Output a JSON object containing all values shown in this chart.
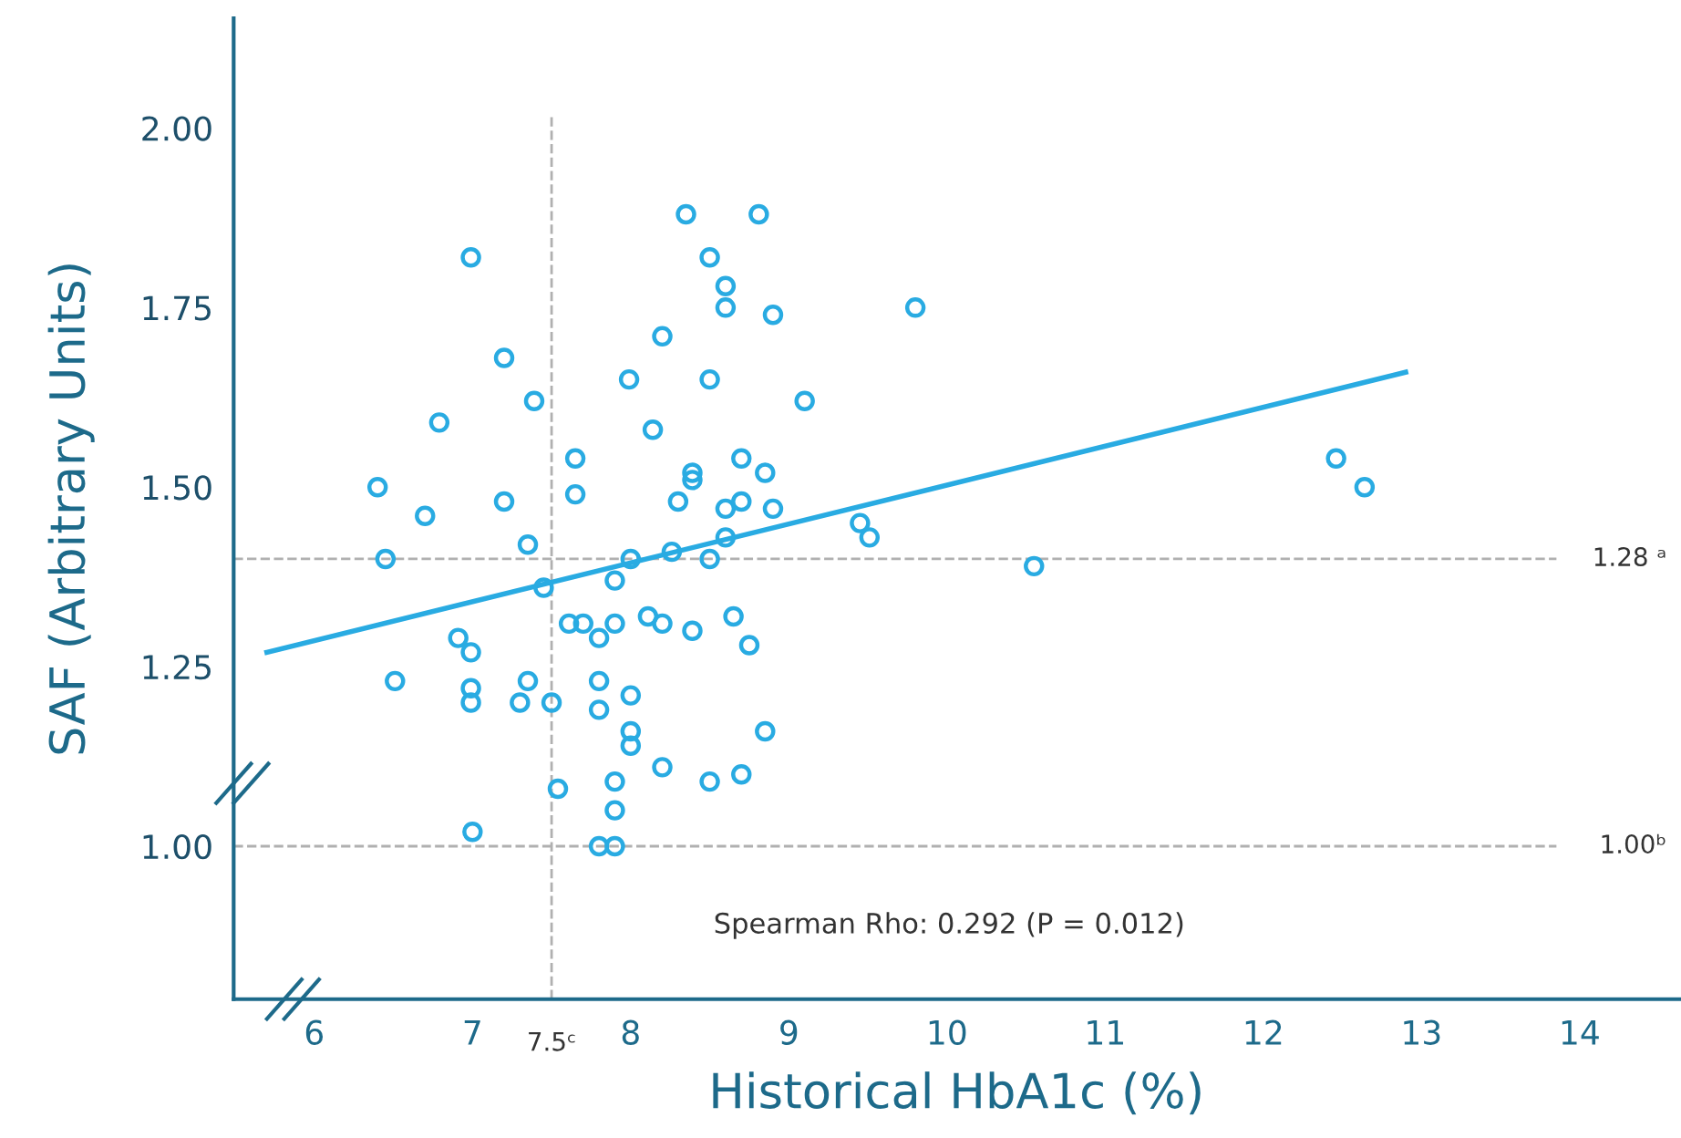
{
  "chart_data": {
    "type": "scatter",
    "xlabel": "Historical HbA1c (%)",
    "ylabel": "SAF (Arbitrary Units)",
    "xlim": [
      5.49,
      14.63
    ],
    "ylim": [
      0.787,
      2.153
    ],
    "xticks": [
      6,
      7,
      8,
      9,
      10,
      11,
      12,
      13,
      14
    ],
    "yticks": [
      {
        "value": 1,
        "label": "1.00"
      },
      {
        "value": 1.25,
        "label": "1.25"
      },
      {
        "value": 1.5,
        "label": "1.50"
      },
      {
        "value": 1.75,
        "label": "1.75"
      },
      {
        "value": 2,
        "label": "2.00"
      }
    ],
    "grid": false,
    "marker": "circle",
    "series": [
      {
        "color": "#29abe2",
        "x": [
          6.4,
          6.45,
          6.7,
          6.51,
          6.79,
          6.91,
          6.99,
          6.99,
          6.99,
          6.99,
          7.0,
          7.2,
          7.2,
          7.35,
          7.35,
          7.3,
          7.39,
          7.45,
          7.5,
          7.54,
          7.65,
          7.65,
          7.61,
          7.7,
          7.8,
          7.8,
          7.8,
          7.8,
          7.9,
          7.9,
          7.9,
          7.9,
          7.9,
          8.0,
          8.0,
          8.0,
          8.0,
          7.99,
          8.14,
          8.11,
          8.2,
          8.2,
          8.2,
          8.26,
          8.3,
          8.35,
          8.39,
          8.39,
          8.39,
          8.5,
          8.5,
          8.5,
          8.5,
          8.6,
          8.6,
          8.6,
          8.6,
          8.65,
          8.7,
          8.7,
          8.7,
          8.75,
          8.81,
          8.85,
          8.85,
          8.9,
          8.9,
          9.1,
          9.45,
          9.51,
          9.8,
          10.55,
          12.46,
          12.64
        ],
        "values": [
          1.5,
          1.4,
          1.46,
          1.23,
          1.59,
          1.29,
          1.82,
          1.27,
          1.22,
          1.2,
          1.02,
          1.68,
          1.48,
          1.42,
          1.23,
          1.2,
          1.62,
          1.36,
          1.2,
          1.08,
          1.54,
          1.49,
          1.31,
          1.31,
          1.29,
          1.23,
          1.19,
          1.0,
          1.0,
          1.05,
          1.09,
          1.31,
          1.37,
          1.4,
          1.21,
          1.16,
          1.14,
          1.65,
          1.58,
          1.32,
          1.71,
          1.11,
          1.31,
          1.41,
          1.48,
          1.88,
          1.52,
          1.51,
          1.3,
          1.82,
          1.65,
          1.4,
          1.09,
          1.78,
          1.75,
          1.47,
          1.43,
          1.32,
          1.54,
          1.48,
          1.1,
          1.28,
          1.88,
          1.52,
          1.16,
          1.74,
          1.47,
          1.62,
          1.45,
          1.43,
          1.75,
          1.39,
          1.54,
          1.5
        ]
      },
      {
        "type": "line",
        "color": "#29abe2",
        "marker": "none",
        "line_style": "solid",
        "x": [
          5.7,
          12.9
        ],
        "values": [
          1.27,
          1.66
        ]
      }
    ],
    "ref_lines": [
      {
        "axis": "y",
        "value": 1.4,
        "label": "1.28 ᵃ",
        "color": "#b0b0b0",
        "line_style": "dashed"
      },
      {
        "axis": "y",
        "value": 1.0,
        "label": "1.00ᵇ",
        "color": "#b0b0b0",
        "line_style": "dashed"
      },
      {
        "axis": "x",
        "value": 7.5,
        "label": "7.5ᶜ",
        "color": "#b0b0b0",
        "line_style": "dashed"
      }
    ],
    "annotations": [
      "Spearman Rho: 0.292 (P = 0.012)"
    ]
  }
}
